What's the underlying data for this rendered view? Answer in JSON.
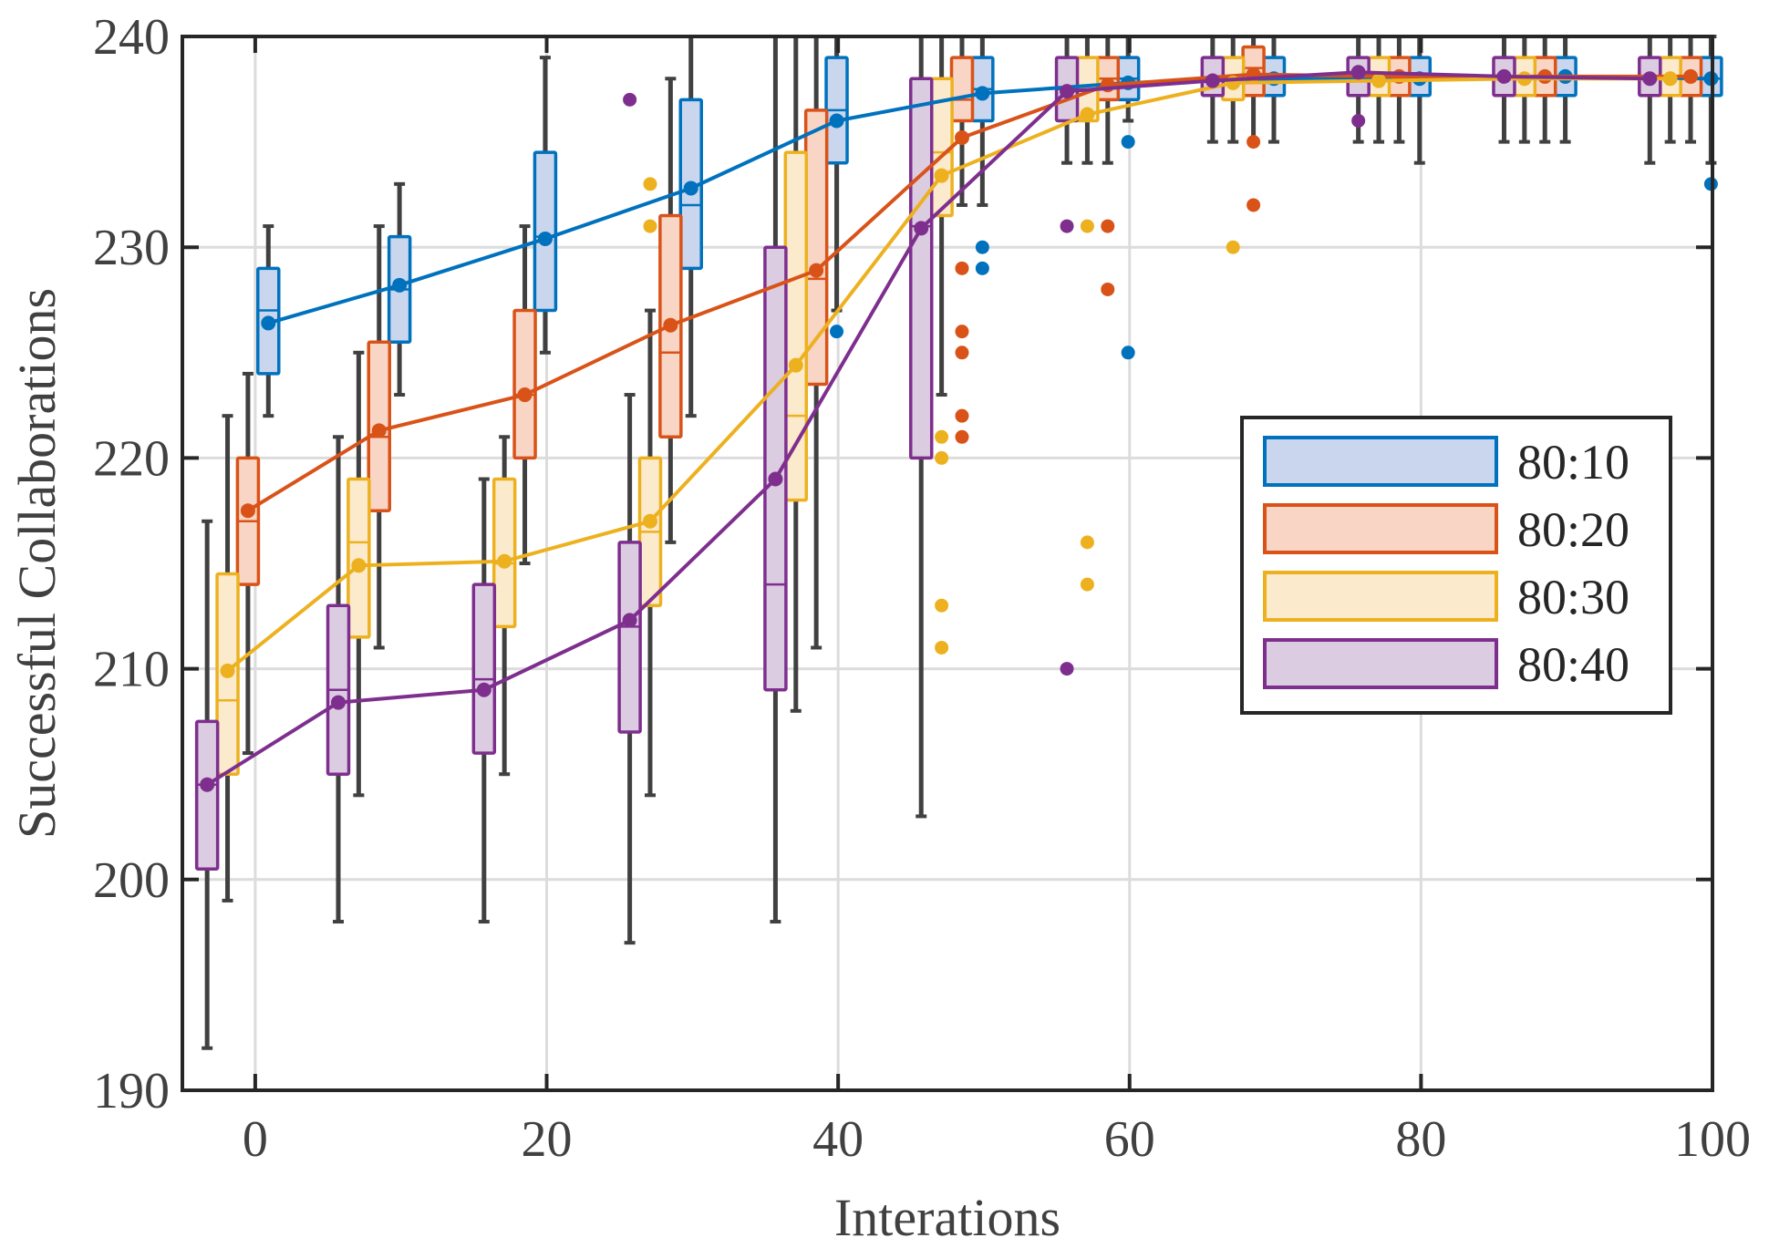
{
  "chart_data": {
    "type": "box-with-mean-lines",
    "title": "",
    "xlabel": "Interations",
    "ylabel": "Successful Collaborations",
    "xlim": [
      -5,
      100
    ],
    "ylim": [
      190,
      240
    ],
    "xticks": [
      0,
      20,
      40,
      60,
      80,
      100
    ],
    "yticks": [
      190,
      200,
      210,
      220,
      230,
      240
    ],
    "xtick_labels": [
      "0",
      "20",
      "40",
      "60",
      "80",
      "100"
    ],
    "ytick_labels": [
      "190",
      "200",
      "210",
      "220",
      "230",
      "240"
    ],
    "grid": true,
    "legend_position": "right",
    "series": [
      {
        "name": "80:10",
        "color": "#0072BD",
        "fill": "#C9D6EE",
        "positions": [
          0.9,
          9.9,
          19.9,
          29.9,
          39.9,
          49.9,
          59.9,
          69.9,
          79.9,
          89.9,
          99.9
        ],
        "mean": [
          226.4,
          228.2,
          230.4,
          232.8,
          236,
          237.3,
          237.8,
          238,
          238,
          238.1,
          238
        ],
        "boxes": [
          {
            "q1": 224,
            "median": 227,
            "q3": 229,
            "wlo": 222,
            "whi": 231,
            "outliers": []
          },
          {
            "q1": 225.5,
            "median": 228,
            "q3": 230.5,
            "wlo": 223,
            "whi": 233,
            "outliers": []
          },
          {
            "q1": 227,
            "median": 230.5,
            "q3": 234.5,
            "wlo": 225,
            "whi": 239,
            "outliers": []
          },
          {
            "q1": 229,
            "median": 232,
            "q3": 237,
            "wlo": 222,
            "whi": 240,
            "outliers": []
          },
          {
            "q1": 234,
            "median": 236.5,
            "q3": 239,
            "wlo": 227,
            "whi": 240,
            "outliers": [
              226
            ]
          },
          {
            "q1": 236,
            "median": 237.5,
            "q3": 239,
            "wlo": 232,
            "whi": 240,
            "outliers": [
              230,
              229
            ]
          },
          {
            "q1": 237,
            "median": 238,
            "q3": 239,
            "wlo": 236,
            "whi": 240,
            "outliers": [
              235,
              225
            ]
          },
          {
            "q1": 237.2,
            "median": 238,
            "q3": 239,
            "wlo": 235,
            "whi": 240,
            "outliers": []
          },
          {
            "q1": 237.2,
            "median": 238,
            "q3": 239,
            "wlo": 234,
            "whi": 240,
            "outliers": []
          },
          {
            "q1": 237.2,
            "median": 238,
            "q3": 239,
            "wlo": 235,
            "whi": 240,
            "outliers": []
          },
          {
            "q1": 237.2,
            "median": 238,
            "q3": 239,
            "wlo": 234,
            "whi": 240,
            "outliers": [
              233
            ]
          }
        ]
      },
      {
        "name": "80:20",
        "color": "#D95319",
        "fill": "#F8D5C4",
        "positions": [
          -0.5,
          8.5,
          18.5,
          28.5,
          38.5,
          48.5,
          58.5,
          68.5,
          78.5,
          88.5,
          98.5
        ],
        "mean": [
          217.5,
          221.3,
          223,
          226.3,
          228.9,
          235.2,
          237.7,
          238.2,
          238.1,
          238.1,
          238.1
        ],
        "boxes": [
          {
            "q1": 214,
            "median": 217,
            "q3": 220,
            "wlo": 206,
            "whi": 224,
            "outliers": []
          },
          {
            "q1": 217.5,
            "median": 221,
            "q3": 225.5,
            "wlo": 211,
            "whi": 231,
            "outliers": []
          },
          {
            "q1": 220,
            "median": 223,
            "q3": 227,
            "wlo": 215,
            "whi": 231,
            "outliers": []
          },
          {
            "q1": 221,
            "median": 225,
            "q3": 231.5,
            "wlo": 216,
            "whi": 238,
            "outliers": []
          },
          {
            "q1": 223.5,
            "median": 228.5,
            "q3": 236.5,
            "wlo": 211,
            "whi": 240,
            "outliers": []
          },
          {
            "q1": 236,
            "median": 237,
            "q3": 239,
            "wlo": 232,
            "whi": 240,
            "outliers": [
              229,
              226,
              225,
              222,
              221
            ]
          },
          {
            "q1": 237,
            "median": 238,
            "q3": 239,
            "wlo": 234,
            "whi": 240,
            "outliers": [
              231,
              228
            ]
          },
          {
            "q1": 237.2,
            "median": 238.5,
            "q3": 239.5,
            "wlo": 235,
            "whi": 240,
            "outliers": [
              235,
              232
            ]
          },
          {
            "q1": 237.2,
            "median": 238,
            "q3": 239,
            "wlo": 235,
            "whi": 240,
            "outliers": []
          },
          {
            "q1": 237.2,
            "median": 238,
            "q3": 239,
            "wlo": 235,
            "whi": 240,
            "outliers": []
          },
          {
            "q1": 237.2,
            "median": 238,
            "q3": 239,
            "wlo": 235,
            "whi": 240,
            "outliers": []
          }
        ]
      },
      {
        "name": "80:30",
        "color": "#EDB120",
        "fill": "#FBEACB",
        "positions": [
          -1.9,
          7.1,
          17.1,
          27.1,
          37.1,
          47.1,
          57.1,
          67.1,
          77.1,
          87.1,
          97.1
        ],
        "mean": [
          209.9,
          214.9,
          215.1,
          217,
          224.4,
          233.4,
          236.3,
          237.8,
          237.9,
          238,
          238
        ],
        "boxes": [
          {
            "q1": 205,
            "median": 208.5,
            "q3": 214.5,
            "wlo": 199,
            "whi": 222,
            "outliers": []
          },
          {
            "q1": 211.5,
            "median": 216,
            "q3": 219,
            "wlo": 204,
            "whi": 225,
            "outliers": []
          },
          {
            "q1": 212,
            "median": 215,
            "q3": 219,
            "wlo": 205,
            "whi": 221,
            "outliers": []
          },
          {
            "q1": 213,
            "median": 216.5,
            "q3": 220,
            "wlo": 204,
            "whi": 227,
            "outliers": [
              233,
              231
            ]
          },
          {
            "q1": 218,
            "median": 222,
            "q3": 234.5,
            "wlo": 208,
            "whi": 240,
            "outliers": []
          },
          {
            "q1": 231.5,
            "median": 234.5,
            "q3": 238,
            "wlo": 223,
            "whi": 240,
            "outliers": [
              221,
              220,
              213,
              211
            ]
          },
          {
            "q1": 236,
            "median": 237.5,
            "q3": 239,
            "wlo": 234,
            "whi": 240,
            "outliers": [
              231,
              216,
              214
            ]
          },
          {
            "q1": 237,
            "median": 238,
            "q3": 239,
            "wlo": 235,
            "whi": 240,
            "outliers": [
              230
            ]
          },
          {
            "q1": 237.2,
            "median": 238,
            "q3": 239,
            "wlo": 235,
            "whi": 240,
            "outliers": []
          },
          {
            "q1": 237.2,
            "median": 238,
            "q3": 239,
            "wlo": 235,
            "whi": 240,
            "outliers": []
          },
          {
            "q1": 237.2,
            "median": 238,
            "q3": 239,
            "wlo": 235,
            "whi": 240,
            "outliers": []
          }
        ]
      },
      {
        "name": "80:40",
        "color": "#7E2F8E",
        "fill": "#DCCCE2",
        "positions": [
          -3.3,
          5.7,
          15.7,
          25.7,
          35.7,
          45.7,
          55.7,
          65.7,
          75.7,
          85.7,
          95.7
        ],
        "mean": [
          204.5,
          208.4,
          209,
          212.3,
          219,
          230.9,
          237.4,
          237.9,
          238.3,
          238.1,
          238
        ],
        "boxes": [
          {
            "q1": 200.5,
            "median": 204.5,
            "q3": 207.5,
            "wlo": 192,
            "whi": 217,
            "outliers": []
          },
          {
            "q1": 205,
            "median": 209,
            "q3": 213,
            "wlo": 198,
            "whi": 221,
            "outliers": []
          },
          {
            "q1": 206,
            "median": 209.5,
            "q3": 214,
            "wlo": 198,
            "whi": 219,
            "outliers": []
          },
          {
            "q1": 207,
            "median": 212,
            "q3": 216,
            "wlo": 197,
            "whi": 223,
            "outliers": [
              237
            ]
          },
          {
            "q1": 209,
            "median": 214,
            "q3": 230,
            "wlo": 198,
            "whi": 240,
            "outliers": []
          },
          {
            "q1": 220,
            "median": 231,
            "q3": 238,
            "wlo": 203,
            "whi": 240,
            "outliers": []
          },
          {
            "q1": 236,
            "median": 237.5,
            "q3": 239,
            "wlo": 234,
            "whi": 240,
            "outliers": [
              231,
              210
            ]
          },
          {
            "q1": 237.2,
            "median": 238,
            "q3": 239,
            "wlo": 235,
            "whi": 240,
            "outliers": []
          },
          {
            "q1": 237.2,
            "median": 238.3,
            "q3": 239,
            "wlo": 235,
            "whi": 240,
            "outliers": [
              236
            ]
          },
          {
            "q1": 237.2,
            "median": 238,
            "q3": 239,
            "wlo": 235,
            "whi": 240,
            "outliers": []
          },
          {
            "q1": 237.2,
            "median": 238,
            "q3": 239,
            "wlo": 234,
            "whi": 240,
            "outliers": []
          }
        ]
      }
    ]
  }
}
